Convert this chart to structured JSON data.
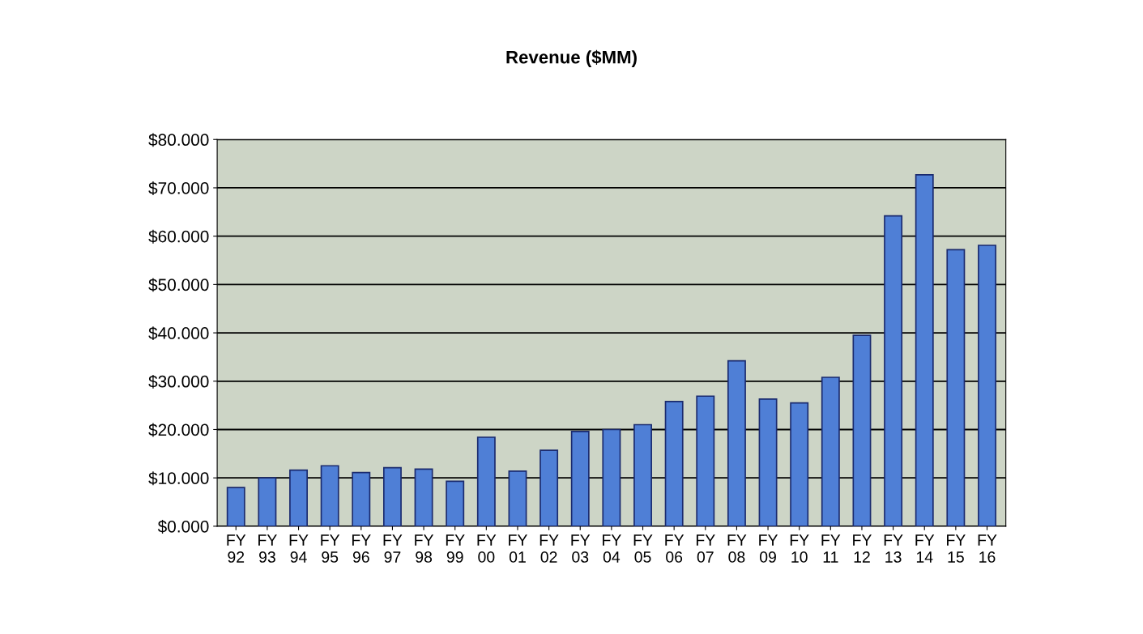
{
  "chart_data": {
    "type": "bar",
    "title": "Revenue ($MM)",
    "categories": [
      "FY\n92",
      "FY\n93",
      "FY\n94",
      "FY\n95",
      "FY\n96",
      "FY\n97",
      "FY\n98",
      "FY\n99",
      "FY\n00",
      "FY\n01",
      "FY\n02",
      "FY\n03",
      "FY\n04",
      "FY\n05",
      "FY\n06",
      "FY\n07",
      "FY\n08",
      "FY\n09",
      "FY\n10",
      "FY\n11",
      "FY\n12",
      "FY\n13",
      "FY\n14",
      "FY\n15",
      "FY\n16"
    ],
    "values": [
      8.0,
      10.0,
      11.6,
      12.5,
      11.1,
      12.1,
      11.8,
      9.3,
      18.4,
      11.4,
      15.7,
      19.6,
      20.0,
      21.0,
      25.8,
      26.9,
      34.2,
      26.3,
      25.5,
      30.8,
      39.5,
      64.2,
      72.7,
      57.2,
      58.1
    ],
    "color": "#4f7fd6",
    "ylim": [
      0,
      80
    ],
    "yticks": [
      {
        "value": 0,
        "label": "$0.000"
      },
      {
        "value": 10,
        "label": "$10.000"
      },
      {
        "value": 20,
        "label": "$20.000"
      },
      {
        "value": 30,
        "label": "$30.000"
      },
      {
        "value": 40,
        "label": "$40.000"
      },
      {
        "value": 50,
        "label": "$50.000"
      },
      {
        "value": 60,
        "label": "$60.000"
      },
      {
        "value": 70,
        "label": "$70.000"
      },
      {
        "value": 80,
        "label": "$80.000"
      }
    ],
    "grid": "y"
  }
}
